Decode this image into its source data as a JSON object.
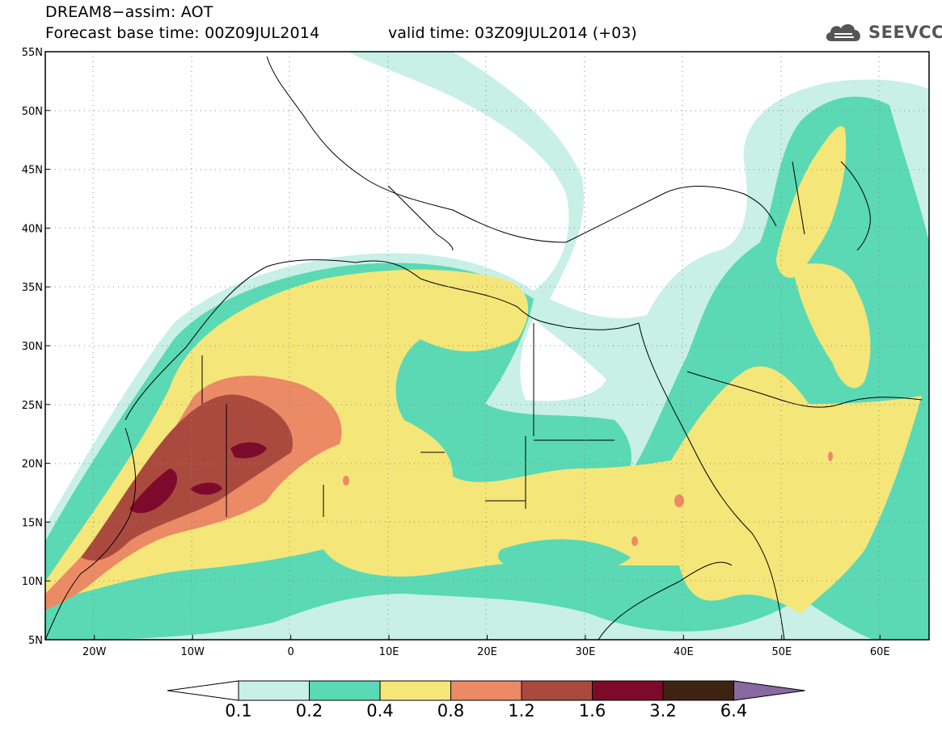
{
  "title_line1": "DREAM8−assim: AOT",
  "title_line2": "Forecast base time: 00Z09JUL2014",
  "valid_time": "valid time: 03Z09JUL2014 (+03)",
  "logo": {
    "text": "SEEVCCC",
    "icon": "cloud-icon"
  },
  "map": {
    "projection": "lat-lon",
    "lon_range": [
      -25,
      65
    ],
    "lat_range": [
      5,
      55
    ],
    "lon_ticks": [
      "20W",
      "10W",
      "0",
      "10E",
      "20E",
      "30E",
      "40E",
      "50E",
      "60E"
    ],
    "lat_ticks": [
      "55N",
      "50N",
      "45N",
      "40N",
      "35N",
      "30N",
      "25N",
      "20N",
      "15N",
      "10N",
      "5N"
    ],
    "grid": "dotted",
    "variable": "Aerosol optical thickness (AOT)"
  },
  "colorbar": {
    "levels": [
      "0.1",
      "0.2",
      "0.4",
      "0.8",
      "1.2",
      "1.6",
      "3.2",
      "6.4"
    ],
    "colors": [
      "#ffffff",
      "#c8f0e6",
      "#5ad9b4",
      "#f5e679",
      "#eb8a65",
      "#aa4a3f",
      "#7d0a2b",
      "#3f2312",
      "#8a68a2"
    ]
  }
}
